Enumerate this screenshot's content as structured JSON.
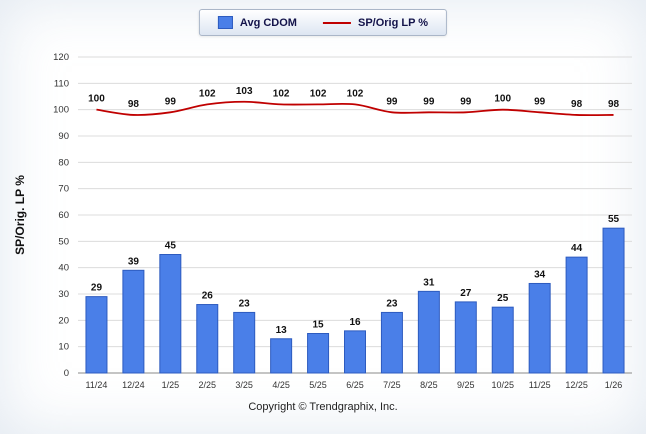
{
  "legend": {
    "bar_label": "Avg CDOM",
    "line_label": "SP/Orig LP %"
  },
  "axis": {
    "ylabel": "SP/Orig. LP %"
  },
  "footer": {
    "text": "Copyright © Trendgraphix, Inc."
  },
  "colors": {
    "bar_fill": "#4a7fe8",
    "bar_border": "#2d5bbf",
    "line": "#c00000",
    "grid": "#dcdcdc",
    "axis": "#8a8a8a"
  },
  "chart_data": {
    "type": "bar+line",
    "title": "",
    "categories": [
      "11/24",
      "12/24",
      "1/25",
      "2/25",
      "3/25",
      "4/25",
      "5/25",
      "6/25",
      "7/25",
      "8/25",
      "9/25",
      "10/25",
      "11/25",
      "12/25",
      "1/26"
    ],
    "series": [
      {
        "name": "Avg CDOM",
        "type": "bar",
        "color": "#4a7fe8",
        "values": [
          29,
          39,
          45,
          26,
          23,
          13,
          15,
          16,
          23,
          31,
          27,
          25,
          34,
          44,
          55
        ]
      },
      {
        "name": "SP/Orig LP %",
        "type": "line",
        "color": "#c00000",
        "values": [
          100,
          98,
          99,
          102,
          103,
          102,
          102,
          102,
          99,
          99,
          99,
          100,
          99,
          98,
          98
        ]
      }
    ],
    "ylabel": "SP/Orig. LP %",
    "xlabel": "",
    "ylim": [
      0,
      120
    ],
    "ytick_step": 10,
    "grid": true,
    "data_labels": true,
    "legend_position": "top"
  }
}
